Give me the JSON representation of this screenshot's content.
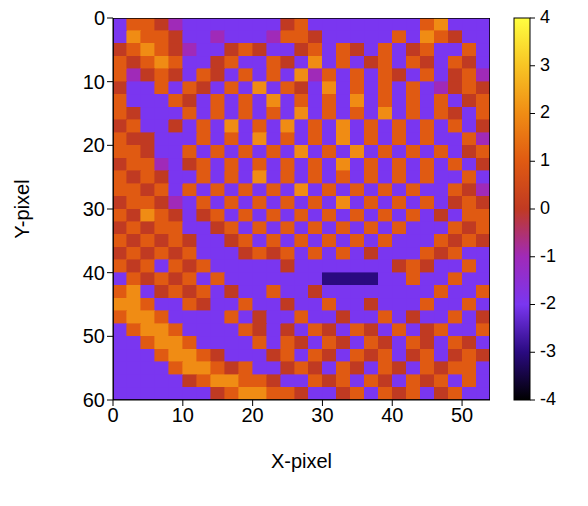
{
  "chart_data": {
    "type": "heatmap",
    "xlabel": "X-pixel",
    "ylabel": "Y-pixel",
    "xlim": [
      0,
      54
    ],
    "ylim": [
      0,
      60
    ],
    "xticks": [
      0,
      10,
      20,
      30,
      40,
      50
    ],
    "yticks": [
      0,
      10,
      20,
      30,
      40,
      50,
      60
    ],
    "x": [
      0,
      2,
      4,
      6,
      8,
      10,
      12,
      14,
      16,
      18,
      20,
      22,
      24,
      26,
      28,
      30,
      32,
      34,
      36,
      38,
      40,
      42,
      44,
      46,
      48,
      50,
      52
    ],
    "y": [
      0,
      2,
      4,
      6,
      8,
      10,
      12,
      14,
      16,
      18,
      20,
      22,
      24,
      26,
      28,
      30,
      32,
      34,
      36,
      38,
      40,
      42,
      44,
      46,
      48,
      50,
      52,
      54,
      56,
      58
    ],
    "cells": [
      [
        -2,
        1,
        1,
        0,
        -1,
        -2,
        -2,
        -2,
        -2,
        -2,
        -2,
        -2,
        0,
        1,
        -2,
        -2,
        -2,
        -2,
        -2,
        -2,
        -2,
        -2,
        1,
        2,
        -2,
        -2,
        -2
      ],
      [
        -2,
        2,
        1,
        1,
        0,
        -2,
        -2,
        -1,
        -2,
        -2,
        -2,
        -1,
        1,
        1,
        0,
        -2,
        -2,
        -2,
        -2,
        -2,
        1,
        -2,
        2,
        1,
        0,
        -2,
        -2
      ],
      [
        0,
        1,
        2,
        1,
        0,
        -1,
        -2,
        -2,
        0,
        1,
        0,
        -2,
        -2,
        0,
        1,
        -2,
        1,
        0,
        -2,
        1,
        -2,
        0,
        1,
        -2,
        -2,
        1,
        -2
      ],
      [
        1,
        0,
        1,
        2,
        1,
        -2,
        -2,
        0,
        1,
        -2,
        -2,
        1,
        0,
        -2,
        2,
        -2,
        1,
        -2,
        0,
        1,
        -2,
        1,
        0,
        -2,
        1,
        0,
        -2
      ],
      [
        1,
        -1,
        0,
        1,
        0,
        -2,
        1,
        0,
        -2,
        1,
        -2,
        1,
        -2,
        2,
        -1,
        1,
        -2,
        1,
        -2,
        1,
        0,
        -2,
        1,
        -2,
        0,
        1,
        -1
      ],
      [
        0,
        -2,
        -2,
        1,
        -2,
        1,
        0,
        -2,
        1,
        -2,
        2,
        -2,
        1,
        0,
        -2,
        2,
        -2,
        1,
        -2,
        1,
        -2,
        1,
        -2,
        -1,
        0,
        1,
        0
      ],
      [
        1,
        -2,
        -2,
        -2,
        1,
        0,
        -2,
        1,
        -2,
        1,
        -2,
        2,
        -2,
        1,
        -2,
        1,
        -2,
        2,
        -2,
        1,
        -2,
        1,
        -2,
        1,
        -2,
        0,
        1
      ],
      [
        1,
        0,
        -2,
        -2,
        -2,
        1,
        -2,
        1,
        -2,
        1,
        -2,
        1,
        -2,
        2,
        -2,
        1,
        -2,
        1,
        -2,
        2,
        -2,
        1,
        -2,
        1,
        0,
        -2,
        1
      ],
      [
        0,
        1,
        -2,
        -2,
        0,
        -2,
        1,
        -2,
        2,
        -2,
        1,
        -2,
        2,
        -2,
        1,
        -2,
        2,
        -2,
        1,
        -2,
        1,
        -2,
        1,
        -2,
        1,
        -2,
        0
      ],
      [
        1,
        0,
        0,
        -2,
        -2,
        -2,
        1,
        -2,
        1,
        -2,
        2,
        -2,
        1,
        -2,
        1,
        -2,
        2,
        -2,
        1,
        -2,
        1,
        -2,
        1,
        -2,
        -2,
        1,
        -1
      ],
      [
        1,
        1,
        0,
        -2,
        -2,
        1,
        -2,
        1,
        -2,
        1,
        -2,
        1,
        -2,
        2,
        -2,
        1,
        -2,
        2,
        -2,
        1,
        -2,
        1,
        -2,
        1,
        -2,
        0,
        1
      ],
      [
        0,
        1,
        1,
        -1,
        -2,
        0,
        1,
        -2,
        1,
        -2,
        1,
        -2,
        1,
        -2,
        1,
        -2,
        2,
        -2,
        1,
        -2,
        1,
        -2,
        1,
        -2,
        1,
        -2,
        0
      ],
      [
        1,
        0,
        1,
        0,
        -2,
        -2,
        1,
        -2,
        1,
        -2,
        2,
        -2,
        1,
        -2,
        1,
        -2,
        1,
        -2,
        1,
        -2,
        1,
        -2,
        1,
        -2,
        -2,
        1,
        -2
      ],
      [
        1,
        1,
        0,
        1,
        -2,
        1,
        -2,
        1,
        -2,
        1,
        -2,
        1,
        -2,
        2,
        -2,
        1,
        -2,
        1,
        -2,
        1,
        -2,
        1,
        -2,
        -2,
        1,
        0,
        -1
      ],
      [
        0,
        1,
        1,
        0,
        -1,
        -2,
        1,
        -2,
        1,
        -2,
        1,
        -2,
        1,
        -2,
        1,
        -2,
        2,
        -2,
        1,
        -2,
        1,
        -2,
        1,
        -2,
        0,
        1,
        0
      ],
      [
        1,
        0,
        2,
        1,
        0,
        -2,
        0,
        1,
        -2,
        1,
        -2,
        1,
        -2,
        1,
        -2,
        1,
        -2,
        1,
        -2,
        1,
        -2,
        1,
        -2,
        0,
        -2,
        1,
        1
      ],
      [
        0,
        1,
        0,
        1,
        1,
        -2,
        -2,
        0,
        1,
        -2,
        1,
        -2,
        1,
        -2,
        1,
        -2,
        1,
        -2,
        1,
        -2,
        1,
        -2,
        -2,
        -2,
        1,
        0,
        1
      ],
      [
        1,
        0,
        1,
        0,
        1,
        0,
        -2,
        -2,
        0,
        1,
        -2,
        1,
        -2,
        1,
        -2,
        1,
        -2,
        1,
        -2,
        1,
        -2,
        -2,
        -2,
        1,
        0,
        1,
        0
      ],
      [
        0,
        1,
        0,
        1,
        0,
        1,
        -2,
        -2,
        -2,
        0,
        1,
        0,
        1,
        -2,
        1,
        -2,
        1,
        -2,
        0,
        -2,
        -2,
        -2,
        1,
        0,
        1,
        -2,
        -2
      ],
      [
        1,
        0,
        1,
        -2,
        1,
        0,
        1,
        -2,
        -2,
        -2,
        -2,
        -2,
        0,
        -2,
        -2,
        -2,
        -2,
        -2,
        -2,
        -2,
        0,
        1,
        0,
        -2,
        -2,
        1,
        -2
      ],
      [
        -2,
        1,
        0,
        1,
        0,
        1,
        -2,
        1,
        -2,
        -2,
        -2,
        -2,
        -2,
        -2,
        -2,
        -3,
        -3,
        -3,
        -3,
        -2,
        -2,
        1,
        -2,
        -2,
        1,
        -2,
        -2
      ],
      [
        1,
        2,
        -2,
        0,
        1,
        0,
        1,
        -2,
        0,
        -2,
        -2,
        1,
        -2,
        -2,
        0,
        -2,
        -2,
        -2,
        -2,
        -2,
        -2,
        -2,
        -2,
        1,
        -2,
        -2,
        1
      ],
      [
        2,
        2,
        1,
        -2,
        -2,
        1,
        0,
        -2,
        -2,
        1,
        -2,
        -2,
        0,
        -2,
        -2,
        1,
        -2,
        -2,
        0,
        -2,
        -2,
        -2,
        1,
        -2,
        -2,
        1,
        -2
      ],
      [
        1,
        2,
        2,
        1,
        -2,
        -2,
        -2,
        -2,
        1,
        -2,
        0,
        -2,
        -2,
        1,
        -2,
        -2,
        0,
        -2,
        -2,
        1,
        -2,
        0,
        -2,
        -2,
        1,
        -2,
        0
      ],
      [
        -2,
        1,
        2,
        2,
        1,
        -2,
        -2,
        -2,
        -2,
        1,
        0,
        -2,
        0,
        -2,
        1,
        0,
        -2,
        1,
        0,
        -2,
        1,
        -2,
        0,
        1,
        -2,
        -2,
        1
      ],
      [
        -2,
        -2,
        1,
        2,
        2,
        1,
        -2,
        -2,
        -2,
        -2,
        1,
        -2,
        1,
        0,
        -2,
        1,
        0,
        -2,
        1,
        0,
        -2,
        1,
        0,
        -2,
        1,
        0,
        -2
      ],
      [
        -2,
        -2,
        -2,
        1,
        2,
        2,
        1,
        0,
        -2,
        -2,
        -2,
        0,
        1,
        -2,
        1,
        0,
        -2,
        1,
        0,
        1,
        -2,
        0,
        1,
        -2,
        0,
        1,
        0
      ],
      [
        -2,
        -2,
        -2,
        -2,
        1,
        2,
        2,
        1,
        0,
        1,
        -2,
        -2,
        0,
        1,
        0,
        -2,
        1,
        0,
        -2,
        1,
        0,
        -2,
        1,
        0,
        1,
        1,
        -2
      ],
      [
        -2,
        -2,
        -2,
        -2,
        -2,
        0,
        1,
        2,
        2,
        1,
        1,
        0,
        -2,
        -2,
        1,
        0,
        1,
        -2,
        1,
        0,
        -2,
        1,
        0,
        1,
        -2,
        1,
        -2
      ],
      [
        -2,
        -2,
        -2,
        -2,
        -2,
        -2,
        -2,
        0,
        1,
        2,
        2,
        1,
        1,
        0,
        -2,
        -2,
        0,
        1,
        -2,
        1,
        0,
        1,
        -2,
        0,
        1,
        -2,
        -2
      ]
    ],
    "colorbar": {
      "lim": [
        -4,
        4
      ],
      "ticks": [
        -4,
        -3,
        -2,
        -1,
        0,
        1,
        2,
        3,
        4
      ]
    }
  }
}
